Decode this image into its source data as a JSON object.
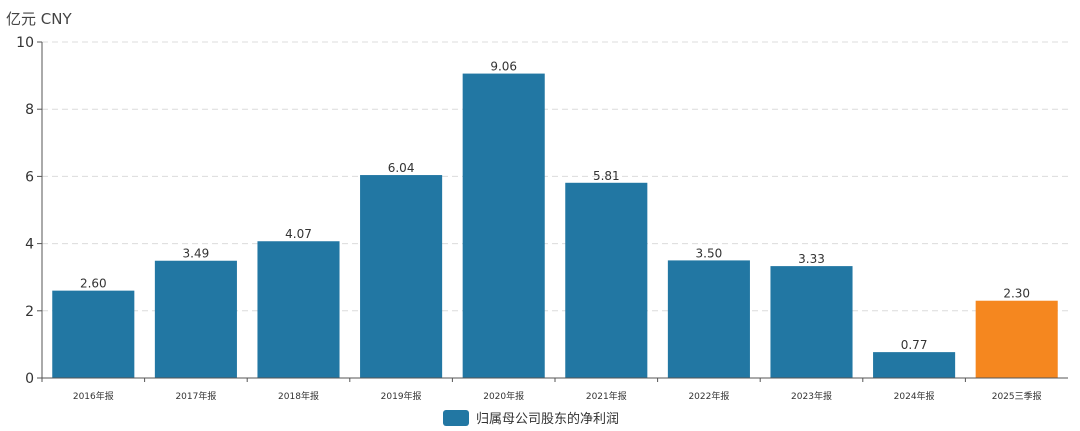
{
  "chart_data": {
    "type": "bar",
    "unit_label": "亿元 CNY",
    "categories": [
      "2016年报",
      "2017年报",
      "2018年报",
      "2019年报",
      "2020年报",
      "2021年报",
      "2022年报",
      "2023年报",
      "2024年报",
      "2025三季报"
    ],
    "values": [
      2.6,
      3.49,
      4.07,
      6.04,
      9.06,
      5.81,
      3.5,
      3.33,
      0.77,
      2.3
    ],
    "value_labels": [
      "2.60",
      "3.49",
      "4.07",
      "6.04",
      "9.06",
      "5.81",
      "3.50",
      "3.33",
      "0.77",
      "2.30"
    ],
    "yticks": [
      0,
      2,
      4,
      6,
      8,
      10
    ],
    "ylim": [
      0,
      10
    ],
    "grid": true,
    "legend_position": "bottom-center",
    "series": [
      {
        "name": "归属母公司股东的净利润"
      }
    ],
    "colors": {
      "primary": "#2277a3",
      "highlight": "#f5871f"
    },
    "highlight_index": 9
  }
}
